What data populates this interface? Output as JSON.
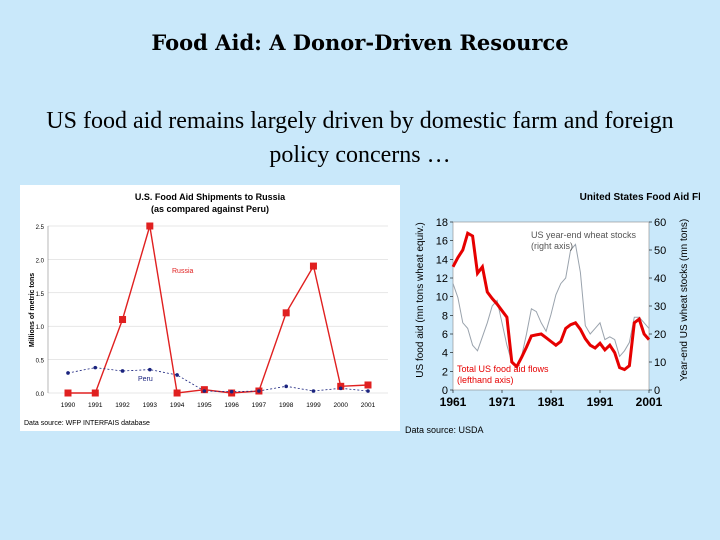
{
  "slide": {
    "title": "Food Aid: A Donor-Driven Resource",
    "subtitle": "US food aid remains largely driven by domestic farm and foreign policy concerns …"
  },
  "colors": {
    "background": "#c9e8fa",
    "russia": "#e02020",
    "peru": "#1a237e",
    "aid_line": "#e60000",
    "stocks_line": "#9aa3ad"
  },
  "chart_data": [
    {
      "type": "line",
      "title": "U.S. Food Aid Shipments to Russia",
      "subtitle": "(as compared against Peru)",
      "ylabel": "Millions of metric tons",
      "ylim": [
        0,
        2.5
      ],
      "yticks": [
        "0.0",
        "0.5",
        "1.0",
        "1.5",
        "2.0",
        "2.5"
      ],
      "categories": [
        "1990",
        "1991",
        "1992",
        "1993",
        "1994",
        "1995",
        "1996",
        "1997",
        "1998",
        "1999",
        "2000",
        "2001"
      ],
      "series": [
        {
          "name": "Russia",
          "values": [
            0.0,
            0.0,
            1.1,
            2.5,
            0.0,
            0.05,
            0.0,
            0.03,
            1.2,
            1.9,
            0.1,
            0.12
          ]
        },
        {
          "name": "Peru",
          "values": [
            0.3,
            0.38,
            0.33,
            0.35,
            0.27,
            0.03,
            0.02,
            0.03,
            0.1,
            0.03,
            0.07,
            0.03
          ]
        }
      ],
      "source": "Data source: WFP INTERFAIS database"
    },
    {
      "type": "line",
      "title": "United States Food Aid Flows",
      "ylabel_left": "US food aid (mn tons wheat equiv.)",
      "ylabel_right": "Year-end US wheat stocks (mn tons)",
      "ylim_left": [
        0,
        18
      ],
      "ylim_right": [
        0,
        60
      ],
      "yticks_left": [
        "0",
        "2",
        "4",
        "6",
        "8",
        "10",
        "12",
        "14",
        "16",
        "18"
      ],
      "yticks_right": [
        "0",
        "10",
        "20",
        "30",
        "40",
        "50",
        "60"
      ],
      "xticks": [
        "1961",
        "1971",
        "1981",
        "1991",
        "2001"
      ],
      "xlim": [
        1961,
        2001
      ],
      "series": [
        {
          "name": "Total US food aid flows (lefthand axis)",
          "axis": "left",
          "x": [
            1961,
            1962,
            1963,
            1964,
            1965,
            1966,
            1967,
            1968,
            1969,
            1970,
            1971,
            1972,
            1973,
            1974,
            1975,
            1976,
            1977,
            1978,
            1979,
            1980,
            1981,
            1982,
            1983,
            1984,
            1985,
            1986,
            1987,
            1988,
            1989,
            1990,
            1991,
            1992,
            1993,
            1994,
            1995,
            1996,
            1997,
            1998,
            1999,
            2000,
            2001
          ],
          "y": [
            13.2,
            14.2,
            15.0,
            16.8,
            16.5,
            12.5,
            13.2,
            10.5,
            9.8,
            9.2,
            8.5,
            7.8,
            3.0,
            2.5,
            3.5,
            4.6,
            5.8,
            5.9,
            6.0,
            5.6,
            5.2,
            4.8,
            5.2,
            6.6,
            7.0,
            7.2,
            6.5,
            5.5,
            4.8,
            4.5,
            5.0,
            4.3,
            4.8,
            4.0,
            2.4,
            2.2,
            2.6,
            7.2,
            7.6,
            6.0,
            5.4
          ]
        },
        {
          "name": "US year-end wheat stocks (right axis)",
          "axis": "right",
          "x": [
            1961,
            1962,
            1963,
            1964,
            1965,
            1966,
            1967,
            1968,
            1969,
            1970,
            1971,
            1972,
            1973,
            1974,
            1975,
            1976,
            1977,
            1978,
            1979,
            1980,
            1981,
            1982,
            1983,
            1984,
            1985,
            1986,
            1987,
            1988,
            1989,
            1990,
            1991,
            1992,
            1993,
            1994,
            1995,
            1996,
            1997,
            1998,
            1999,
            2000,
            2001
          ],
          "y": [
            38,
            33,
            24,
            22,
            16,
            14,
            19,
            24,
            30,
            32,
            24,
            16,
            10,
            8,
            12,
            20,
            29,
            28,
            24,
            21,
            27,
            34,
            38,
            40,
            50,
            52,
            42,
            23,
            20,
            22,
            24,
            18,
            19,
            18,
            12,
            14,
            17,
            26,
            26,
            24,
            22
          ]
        }
      ],
      "annotations": [
        "US year-end wheat stocks",
        "(right axis)",
        "Total US food aid flows",
        "(lefthand axis)"
      ],
      "source": "Data source: USDA"
    }
  ]
}
